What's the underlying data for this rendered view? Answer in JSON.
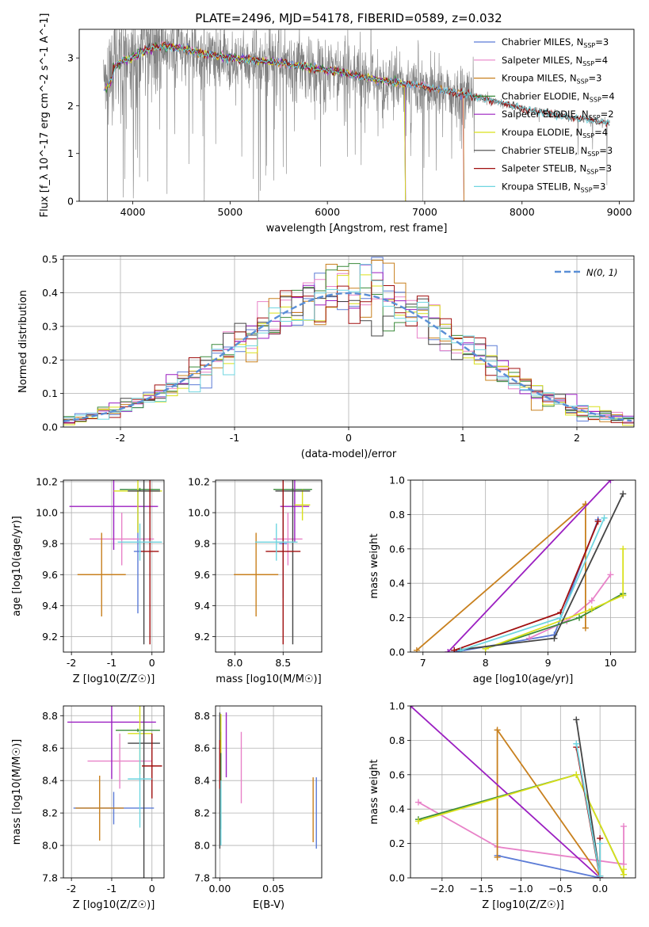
{
  "figure_title": "PLATE=2496, MJD=54178, FIBERID=0589, z=0.032",
  "colors": {
    "Chabrier MILES": "#5b7bd6",
    "Salpeter MILES": "#e882c8",
    "Kroupa MILES": "#c8801e",
    "Chabrier ELODIE": "#3a8a3a",
    "Salpeter ELODIE": "#9b1fc1",
    "Kroupa ELODIE": "#d9e01a",
    "Chabrier STELIB": "#444444",
    "Salpeter STELIB": "#a00f0f",
    "Kroupa STELIB": "#6fd6e0",
    "data": "#808080",
    "gaussian": "#5a8fd6"
  },
  "chart_data": [
    {
      "id": "spectrum",
      "type": "line",
      "xlabel": "wavelength [Angstrom, rest frame]",
      "ylabel": "Flux [f_λ 10^-17 erg cm^-2 s^-1 A^-1]",
      "xlim": [
        3450,
        9150
      ],
      "ylim": [
        0,
        3.6
      ],
      "xticks": [
        4000,
        5000,
        6000,
        7000,
        8000,
        9000
      ],
      "yticks": [
        0,
        1,
        2,
        3
      ],
      "legend": [
        {
          "name": "Chabrier MILES",
          "label": "Chabrier MILES, N",
          "sub": "SSP",
          "tail": "=3"
        },
        {
          "name": "Salpeter MILES",
          "label": "Salpeter MILES, N",
          "sub": "SSP",
          "tail": "=4"
        },
        {
          "name": "Kroupa MILES",
          "label": "Kroupa MILES, N",
          "sub": "SSP",
          "tail": "=3"
        },
        {
          "name": "Chabrier ELODIE",
          "label": "Chabrier ELODIE, N",
          "sub": "SSP",
          "tail": "=4"
        },
        {
          "name": "Salpeter ELODIE",
          "label": "Salpeter ELODIE, N",
          "sub": "SSP",
          "tail": "=2"
        },
        {
          "name": "Kroupa ELODIE",
          "label": "Kroupa ELODIE, N",
          "sub": "SSP",
          "tail": "=4"
        },
        {
          "name": "Chabrier STELIB",
          "label": "Chabrier STELIB, N",
          "sub": "SSP",
          "tail": "=3"
        },
        {
          "name": "Salpeter STELIB",
          "label": "Salpeter STELIB, N",
          "sub": "SSP",
          "tail": "=3"
        },
        {
          "name": "Kroupa STELIB",
          "label": "Kroupa STELIB, N",
          "sub": "SSP",
          "tail": "=3"
        }
      ],
      "continuum": [
        [
          3700,
          2.5
        ],
        [
          3800,
          2.8
        ],
        [
          3900,
          2.95
        ],
        [
          4000,
          3.0
        ],
        [
          4100,
          3.15
        ],
        [
          4300,
          3.25
        ],
        [
          4500,
          3.2
        ],
        [
          4700,
          3.1
        ],
        [
          5000,
          3.0
        ],
        [
          5500,
          2.9
        ],
        [
          6000,
          2.75
        ],
        [
          6500,
          2.55
        ],
        [
          7000,
          2.4
        ],
        [
          7500,
          2.2
        ],
        [
          8000,
          1.95
        ],
        [
          8500,
          1.75
        ],
        [
          8900,
          1.65
        ]
      ],
      "model_cutoffs": {
        "Kroupa MILES": 7400,
        "Salpeter MILES": 7400,
        "Chabrier MILES": 7400,
        "Kroupa ELODIE": 6800,
        "Salpeter ELODIE": 6800,
        "Chabrier ELODIE": 6800
      }
    },
    {
      "id": "residuals",
      "type": "step-histogram",
      "xlabel": "(data-model)/error",
      "ylabel": "Normed distribution",
      "xlim": [
        -2.5,
        2.5
      ],
      "ylim": [
        0,
        0.51
      ],
      "xticks": [
        -2,
        -1,
        0,
        1,
        2
      ],
      "yticks": [
        0.0,
        0.1,
        0.2,
        0.3,
        0.4,
        0.5
      ],
      "bin_width": 0.1,
      "gaussian_label": "N(0, 1)",
      "grid": true
    },
    {
      "id": "age_vs_Z",
      "type": "errorbar",
      "xlabel": "Z [log10(Z/Z☉)]",
      "ylabel": "age [log10(age/yr)]",
      "xlim": [
        -2.2,
        0.3
      ],
      "ylim": [
        9.1,
        10.21
      ],
      "xticks": [
        -2,
        -1,
        0
      ],
      "yticks": [
        9.2,
        9.4,
        9.6,
        9.8,
        10.0,
        10.2
      ],
      "points": [
        {
          "name": "Chabrier MILES",
          "x": -0.35,
          "xerr": 0.1,
          "y": 9.75,
          "yerr": 0.4
        },
        {
          "name": "Salpeter MILES",
          "x": -0.75,
          "xerr": 0.8,
          "y": 9.83,
          "yerr": 0.17
        },
        {
          "name": "Kroupa MILES",
          "x": -1.25,
          "xerr": 0.6,
          "y": 9.6,
          "yerr": 0.27
        },
        {
          "name": "Chabrier ELODIE",
          "x": -0.3,
          "xerr": 0.5,
          "y": 10.15,
          "yerr": 0.01
        },
        {
          "name": "Salpeter ELODIE",
          "x": -0.95,
          "xerr": 1.1,
          "y": 10.04,
          "yerr": 0.28
        },
        {
          "name": "Kroupa ELODIE",
          "x": -0.35,
          "xerr": 0.6,
          "y": 10.14,
          "yerr": 0.27
        },
        {
          "name": "Chabrier STELIB",
          "x": -0.2,
          "xerr": 0.4,
          "y": 10.14,
          "yerr": 0.99
        },
        {
          "name": "Salpeter STELIB",
          "x": -0.05,
          "xerr": 0.22,
          "y": 9.75,
          "yerr": 0.6
        },
        {
          "name": "Kroupa STELIB",
          "x": -0.3,
          "xerr": 0.55,
          "y": 9.81,
          "yerr": 0.12
        }
      ]
    },
    {
      "id": "age_vs_mass",
      "type": "errorbar",
      "xlabel": "mass [log10(M/M☉)]",
      "ylabel": "",
      "xlim": [
        7.8,
        8.9
      ],
      "ylim": [
        9.1,
        10.21
      ],
      "xticks": [
        8.0,
        8.5
      ],
      "yticks": [
        9.2,
        9.4,
        9.6,
        9.8,
        10.0,
        10.2
      ],
      "points": [
        {
          "name": "Chabrier MILES",
          "x": 8.5,
          "xerr": 0.04,
          "y": 9.8,
          "yerr": 0.35
        },
        {
          "name": "Salpeter MILES",
          "x": 8.55,
          "xerr": 0.15,
          "y": 9.83,
          "yerr": 0.17
        },
        {
          "name": "Kroupa MILES",
          "x": 8.22,
          "xerr": 0.23,
          "y": 9.6,
          "yerr": 0.27
        },
        {
          "name": "Chabrier ELODIE",
          "x": 8.6,
          "xerr": 0.2,
          "y": 10.15,
          "yerr": 0.01
        },
        {
          "name": "Salpeter ELODIE",
          "x": 8.62,
          "xerr": 0.15,
          "y": 10.04,
          "yerr": 0.23
        },
        {
          "name": "Kroupa ELODIE",
          "x": 8.7,
          "xerr": 0.08,
          "y": 10.05,
          "yerr": 0.1
        },
        {
          "name": "Chabrier STELIB",
          "x": 8.6,
          "xerr": 0.18,
          "y": 10.14,
          "yerr": 0.99
        },
        {
          "name": "Salpeter STELIB",
          "x": 8.5,
          "xerr": 0.18,
          "y": 9.75,
          "yerr": 0.6
        },
        {
          "name": "Kroupa STELIB",
          "x": 8.43,
          "xerr": 0.22,
          "y": 9.81,
          "yerr": 0.12
        }
      ]
    },
    {
      "id": "massweight_vs_age",
      "type": "line",
      "xlabel": "age [log10(age/yr)]",
      "ylabel": "mass weight",
      "xlim": [
        6.8,
        10.4
      ],
      "ylim": [
        0,
        1.0
      ],
      "xticks": [
        7,
        8,
        9,
        10
      ],
      "yticks": [
        0.0,
        0.2,
        0.4,
        0.6,
        0.8,
        1.0
      ],
      "series": [
        {
          "name": "Chabrier MILES",
          "x": [
            7.5,
            9.1,
            9.8
          ],
          "y": [
            0.0,
            0.1,
            0.77
          ]
        },
        {
          "name": "Salpeter MILES",
          "x": [
            8.7,
            9.3,
            9.7,
            10.0
          ],
          "y": [
            0.08,
            0.18,
            0.3,
            0.45
          ]
        },
        {
          "name": "Kroupa MILES",
          "x": [
            6.9,
            9.6,
            9.6,
            9.6
          ],
          "y": [
            0.01,
            0.86,
            0.14,
            0.86
          ]
        },
        {
          "name": "Chabrier ELODIE",
          "x": [
            8.0,
            9.5,
            10.2,
            10.2
          ],
          "y": [
            0.02,
            0.2,
            0.34,
            0.33
          ]
        },
        {
          "name": "Salpeter ELODIE",
          "x": [
            7.4,
            10.0
          ],
          "y": [
            0.0,
            1.0
          ]
        },
        {
          "name": "Kroupa ELODIE",
          "x": [
            8.0,
            9.7,
            10.2,
            10.2
          ],
          "y": [
            0.02,
            0.25,
            0.33,
            0.6
          ]
        },
        {
          "name": "Chabrier STELIB",
          "x": [
            7.5,
            9.1,
            10.2
          ],
          "y": [
            0.01,
            0.08,
            0.92
          ]
        },
        {
          "name": "Salpeter STELIB",
          "x": [
            7.5,
            9.2,
            9.8
          ],
          "y": [
            0.01,
            0.23,
            0.76
          ]
        },
        {
          "name": "Kroupa STELIB",
          "x": [
            7.6,
            9.2,
            9.9
          ],
          "y": [
            0.01,
            0.2,
            0.78
          ]
        }
      ]
    },
    {
      "id": "mass_vs_Z",
      "type": "errorbar",
      "xlabel": "Z [log10(Z/Z☉)]",
      "ylabel": "mass [log10(M/M☉)]",
      "xlim": [
        -2.2,
        0.3
      ],
      "ylim": [
        7.8,
        8.86
      ],
      "xticks": [
        -2,
        -1,
        0
      ],
      "yticks": [
        7.8,
        8.0,
        8.2,
        8.4,
        8.6,
        8.8
      ],
      "points": [
        {
          "name": "Chabrier MILES",
          "x": -0.95,
          "xerr": 1.0,
          "y": 8.23,
          "yerr": 0.1
        },
        {
          "name": "Salpeter MILES",
          "x": -0.8,
          "xerr": 0.8,
          "y": 8.52,
          "yerr": 0.17
        },
        {
          "name": "Kroupa MILES",
          "x": -1.3,
          "xerr": 0.6,
          "y": 8.23,
          "yerr": 0.2
        },
        {
          "name": "Chabrier ELODIE",
          "x": -0.35,
          "xerr": 0.55,
          "y": 8.71,
          "yerr": 0.01
        },
        {
          "name": "Salpeter ELODIE",
          "x": -1.0,
          "xerr": 1.1,
          "y": 8.76,
          "yerr": 0.35
        },
        {
          "name": "Kroupa ELODIE",
          "x": -0.3,
          "xerr": 0.3,
          "y": 8.69,
          "yerr": 0.25
        },
        {
          "name": "Chabrier STELIB",
          "x": -0.2,
          "xerr": 0.4,
          "y": 8.63,
          "yerr": 0.9
        },
        {
          "name": "Salpeter STELIB",
          "x": 0.0,
          "xerr": 0.25,
          "y": 8.49,
          "yerr": 0.2
        },
        {
          "name": "Kroupa STELIB",
          "x": -0.3,
          "xerr": 0.3,
          "y": 8.41,
          "yerr": 0.3
        }
      ]
    },
    {
      "id": "mass_vs_ebv",
      "type": "errorbar",
      "xlabel": "E(B-V)",
      "ylabel": "",
      "xlim": [
        -0.004,
        0.095
      ],
      "ylim": [
        7.8,
        8.86
      ],
      "xticks": [
        0.0,
        0.05
      ],
      "yticks": [
        7.8,
        8.0,
        8.2,
        8.4,
        8.6,
        8.8
      ],
      "points": [
        {
          "name": "Chabrier MILES",
          "x": 0.09,
          "y": 8.2,
          "yerr": 0.22
        },
        {
          "name": "Salpeter MILES",
          "x": 0.02,
          "y": 8.48,
          "yerr": 0.22
        },
        {
          "name": "Kroupa MILES",
          "x": 0.087,
          "y": 8.22,
          "yerr": 0.2
        },
        {
          "name": "Chabrier ELODIE",
          "x": 0.001,
          "y": 8.4,
          "yerr": 0.3
        },
        {
          "name": "Salpeter ELODIE",
          "x": 0.006,
          "y": 8.62,
          "yerr": 0.2
        },
        {
          "name": "Kroupa ELODIE",
          "x": 0.001,
          "y": 8.69,
          "yerr": 0.12
        },
        {
          "name": "Chabrier STELIB",
          "x": 0.0,
          "y": 8.4,
          "yerr": 0.42
        },
        {
          "name": "Salpeter STELIB",
          "x": 0.0,
          "y": 8.5,
          "yerr": 0.15
        },
        {
          "name": "Kroupa STELIB",
          "x": 0.001,
          "y": 8.2,
          "yerr": 0.2
        }
      ]
    },
    {
      "id": "massweight_vs_Z",
      "type": "line",
      "xlabel": "Z [log10(Z/Z☉)]",
      "ylabel": "mass weight",
      "xlim": [
        -2.4,
        0.45
      ],
      "ylim": [
        0,
        1.0
      ],
      "xticks": [
        -2.0,
        -1.5,
        -1.0,
        -0.5,
        0.0
      ],
      "yticks": [
        0.0,
        0.2,
        0.4,
        0.6,
        0.8,
        1.0
      ],
      "series": [
        {
          "name": "Chabrier MILES",
          "x": [
            -1.3,
            0.0,
            0.0
          ],
          "y": [
            0.13,
            0.0,
            0.0
          ]
        },
        {
          "name": "Salpeter MILES",
          "x": [
            -2.3,
            -1.3,
            0.3,
            0.3
          ],
          "y": [
            0.44,
            0.18,
            0.08,
            0.3
          ]
        },
        {
          "name": "Kroupa MILES",
          "x": [
            -1.3,
            -1.3,
            0.0
          ],
          "y": [
            0.12,
            0.86,
            0.01
          ]
        },
        {
          "name": "Chabrier ELODIE",
          "x": [
            -2.3,
            -0.3,
            0.3
          ],
          "y": [
            0.34,
            0.6,
            0.02
          ]
        },
        {
          "name": "Salpeter ELODIE",
          "x": [
            -2.4,
            0.0
          ],
          "y": [
            1.0,
            0.0
          ]
        },
        {
          "name": "Kroupa ELODIE",
          "x": [
            -2.3,
            -0.3,
            0.3,
            0.3
          ],
          "y": [
            0.33,
            0.6,
            0.02,
            0.05
          ]
        },
        {
          "name": "Chabrier STELIB",
          "x": [
            -0.3,
            0.0
          ],
          "y": [
            0.92,
            0.01
          ]
        },
        {
          "name": "Salpeter STELIB",
          "x": [
            -0.3,
            0.0,
            0.0
          ],
          "y": [
            0.76,
            0.0,
            0.23
          ]
        },
        {
          "name": "Kroupa STELIB",
          "x": [
            -0.3,
            0.0,
            0.0
          ],
          "y": [
            0.78,
            0.01,
            0.2
          ]
        }
      ]
    }
  ]
}
